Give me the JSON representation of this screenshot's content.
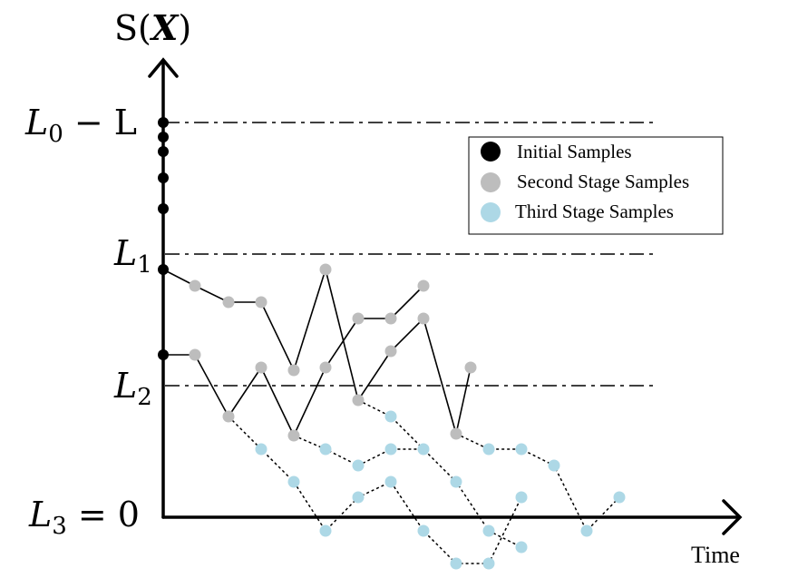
{
  "y_axis_label": {
    "prefix": "S(",
    "var": "X",
    "suffix": ")"
  },
  "x_axis_label": "Time",
  "levels": [
    {
      "name": "L0",
      "base": "L",
      "sub": "0",
      "rest": " − L",
      "value_rank": 0,
      "dashed": true
    },
    {
      "name": "L1",
      "base": "L",
      "sub": "1",
      "rest": "",
      "value_rank": 1,
      "dashed": true
    },
    {
      "name": "L2",
      "base": "L",
      "sub": "2",
      "rest": "",
      "value_rank": 2,
      "dashed": true
    },
    {
      "name": "L3",
      "base": "L",
      "sub": "3",
      "rest": " = 0",
      "value_rank": 3,
      "dashed": false
    }
  ],
  "legend": [
    {
      "label": "Initial Samples",
      "color": "#000000"
    },
    {
      "label": "Second Stage Samples",
      "color": "#bdbdbd"
    },
    {
      "label": "Third Stage Samples",
      "color": "#add8e6"
    }
  ],
  "colors": {
    "initial": "#000000",
    "second": "#bdbdbd",
    "third": "#add8e6",
    "line": "#000000"
  },
  "chart_data": {
    "type": "line",
    "x_units": "time steps",
    "y_units": "S(X)",
    "y_levels": {
      "L0_minus_L": 12,
      "L1": 8,
      "L2": 4,
      "L3": 0
    },
    "initial_samples": [
      {
        "t": 0,
        "s": 12.0
      },
      {
        "t": 0,
        "s": 11.6
      },
      {
        "t": 0,
        "s": 11.2
      },
      {
        "t": 0,
        "s": 10.4
      },
      {
        "t": 0,
        "s": 9.4
      },
      {
        "t": 0,
        "s": 7.6
      },
      {
        "t": 0,
        "s": 4.9
      }
    ],
    "second_stage_paths": [
      {
        "points": [
          [
            0,
            7.6
          ],
          [
            1,
            7.1
          ],
          [
            2,
            6.6
          ],
          [
            3,
            6.6
          ],
          [
            4,
            4.6
          ],
          [
            5,
            7.6
          ],
          [
            6,
            6.1
          ],
          [
            7,
            5.6
          ],
          [
            8,
            7.1
          ]
        ],
        "style": "solid"
      },
      {
        "points": [
          [
            0,
            4.9
          ],
          [
            1,
            4.9
          ],
          [
            2,
            3.0
          ],
          [
            3,
            4.5
          ],
          [
            4,
            2.5
          ],
          [
            5,
            3.3
          ],
          [
            6,
            6.1
          ],
          [
            7,
            6.1
          ],
          [
            8,
            6.1
          ],
          [
            9,
            2.5
          ],
          [
            10,
            4.5
          ]
        ],
        "style": "solid"
      }
    ],
    "second_stage_extra_points": [
      [
        5,
        4.5
      ],
      [
        7,
        5.1
      ],
      [
        6,
        3.5
      ]
    ],
    "third_stage_paths": [
      {
        "points": [
          [
            2,
            3.0
          ],
          [
            3,
            2.0
          ],
          [
            4,
            1.0
          ],
          [
            5,
            -0.5
          ],
          [
            6,
            0.5
          ],
          [
            7,
            1.0
          ],
          [
            8,
            -0.5
          ],
          [
            9,
            -1.5
          ],
          [
            10,
            -1.5
          ],
          [
            11,
            0.5
          ]
        ],
        "style": "dotted"
      },
      {
        "points": [
          [
            4,
            2.5
          ],
          [
            5,
            2.0
          ],
          [
            6,
            1.5
          ],
          [
            7,
            2.0
          ],
          [
            8,
            2.0
          ],
          [
            9,
            1.0
          ],
          [
            10,
            -0.5
          ],
          [
            11,
            -1.0
          ]
        ],
        "style": "dotted"
      },
      {
        "points": [
          [
            6,
            3.5
          ],
          [
            7,
            3.0
          ],
          [
            8,
            2.0
          ],
          [
            9,
            1.0
          ],
          [
            10,
            -0.5
          ]
        ],
        "style": "dotted"
      },
      {
        "points": [
          [
            9,
            2.5
          ],
          [
            10,
            2.0
          ],
          [
            11,
            2.0
          ],
          [
            12,
            1.5
          ],
          [
            13,
            -0.5
          ],
          [
            14,
            0.5
          ]
        ],
        "style": "dotted"
      }
    ]
  }
}
